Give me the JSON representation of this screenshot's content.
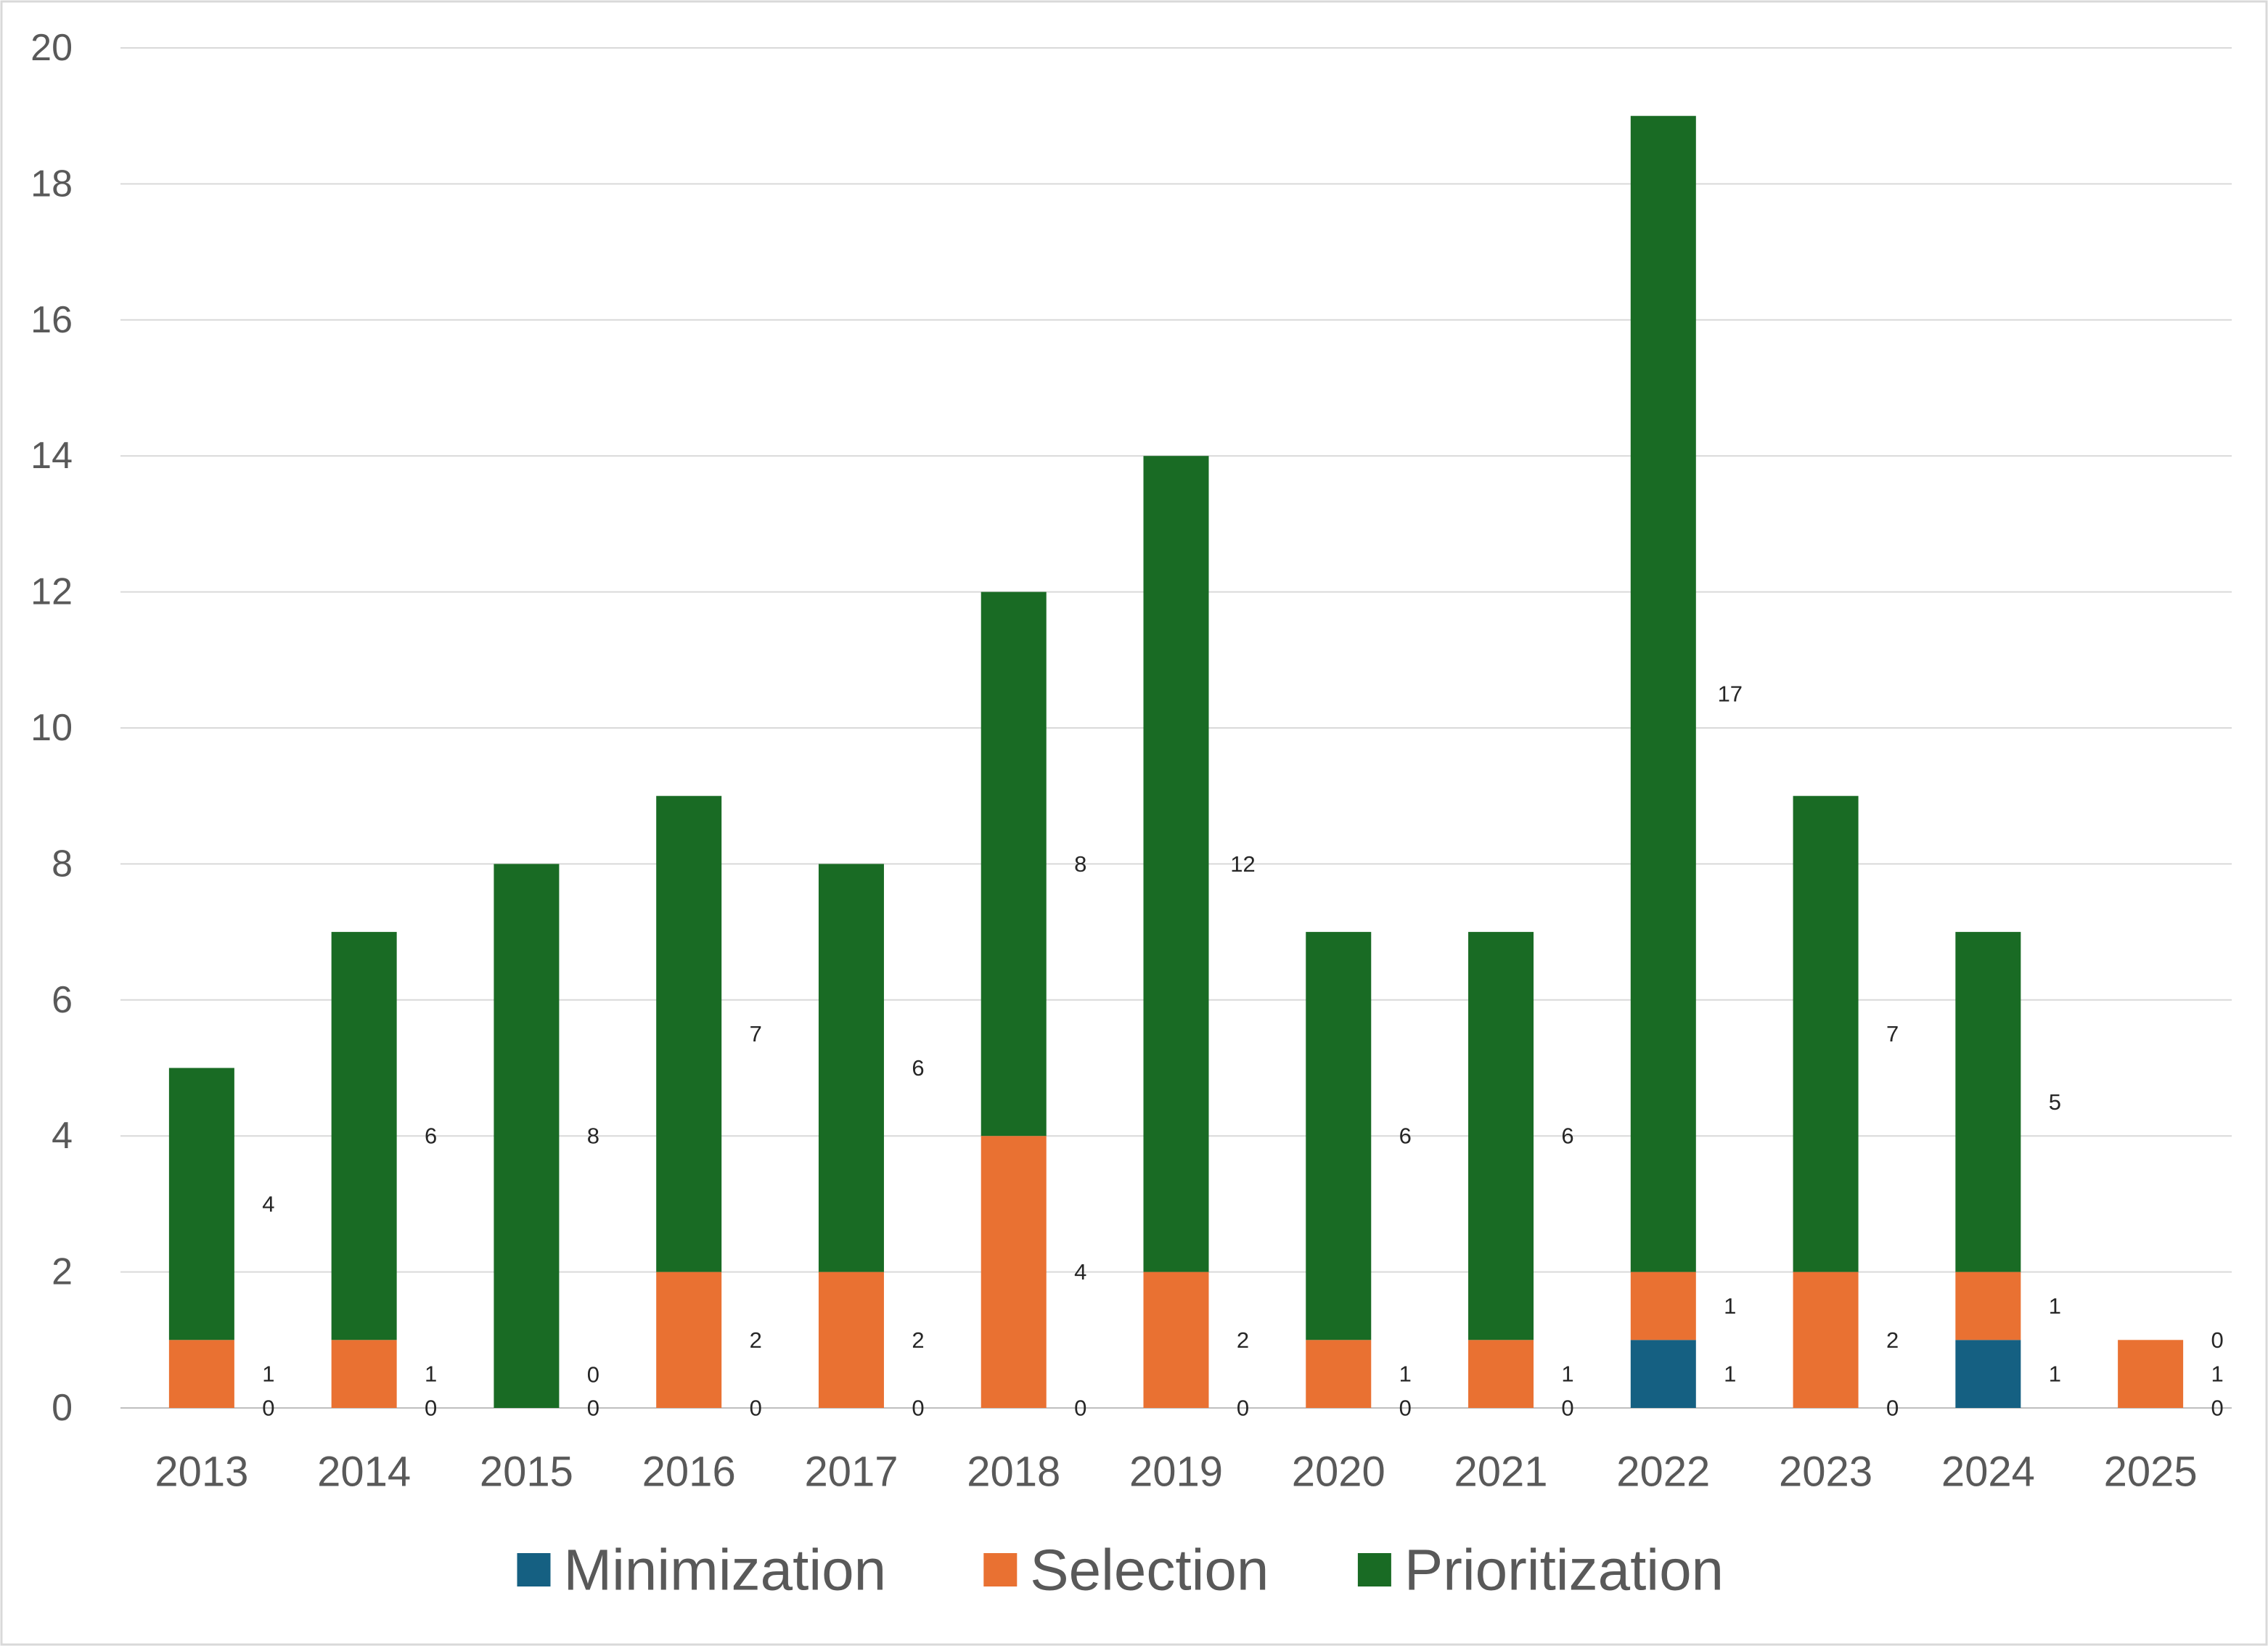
{
  "chart_data": {
    "type": "bar",
    "stacked": true,
    "title": "",
    "xlabel": "",
    "ylabel": "",
    "ylim": [
      0,
      20
    ],
    "ytick_step": 2,
    "yticks": [
      "0",
      "2",
      "4",
      "6",
      "8",
      "10",
      "12",
      "14",
      "16",
      "18",
      "20"
    ],
    "grid": true,
    "legend_position": "bottom",
    "categories": [
      "2013",
      "2014",
      "2015",
      "2016",
      "2017",
      "2018",
      "2019",
      "2020",
      "2021",
      "2022",
      "2023",
      "2024",
      "2025"
    ],
    "series": [
      {
        "name": "Minimization",
        "color": "#156082",
        "values": [
          0,
          0,
          0,
          0,
          0,
          0,
          0,
          0,
          0,
          1,
          0,
          1,
          0
        ]
      },
      {
        "name": "Selection",
        "color": "#E97132",
        "values": [
          1,
          1,
          0,
          2,
          2,
          4,
          2,
          1,
          1,
          1,
          2,
          1,
          1
        ]
      },
      {
        "name": "Prioritization",
        "color": "#196B24",
        "values": [
          4,
          6,
          8,
          7,
          6,
          8,
          12,
          6,
          6,
          17,
          7,
          5,
          0
        ]
      }
    ]
  },
  "colors": {
    "grid": "#d9d9d9",
    "axis": "#bfbfbf",
    "border": "#d9d9d9"
  }
}
